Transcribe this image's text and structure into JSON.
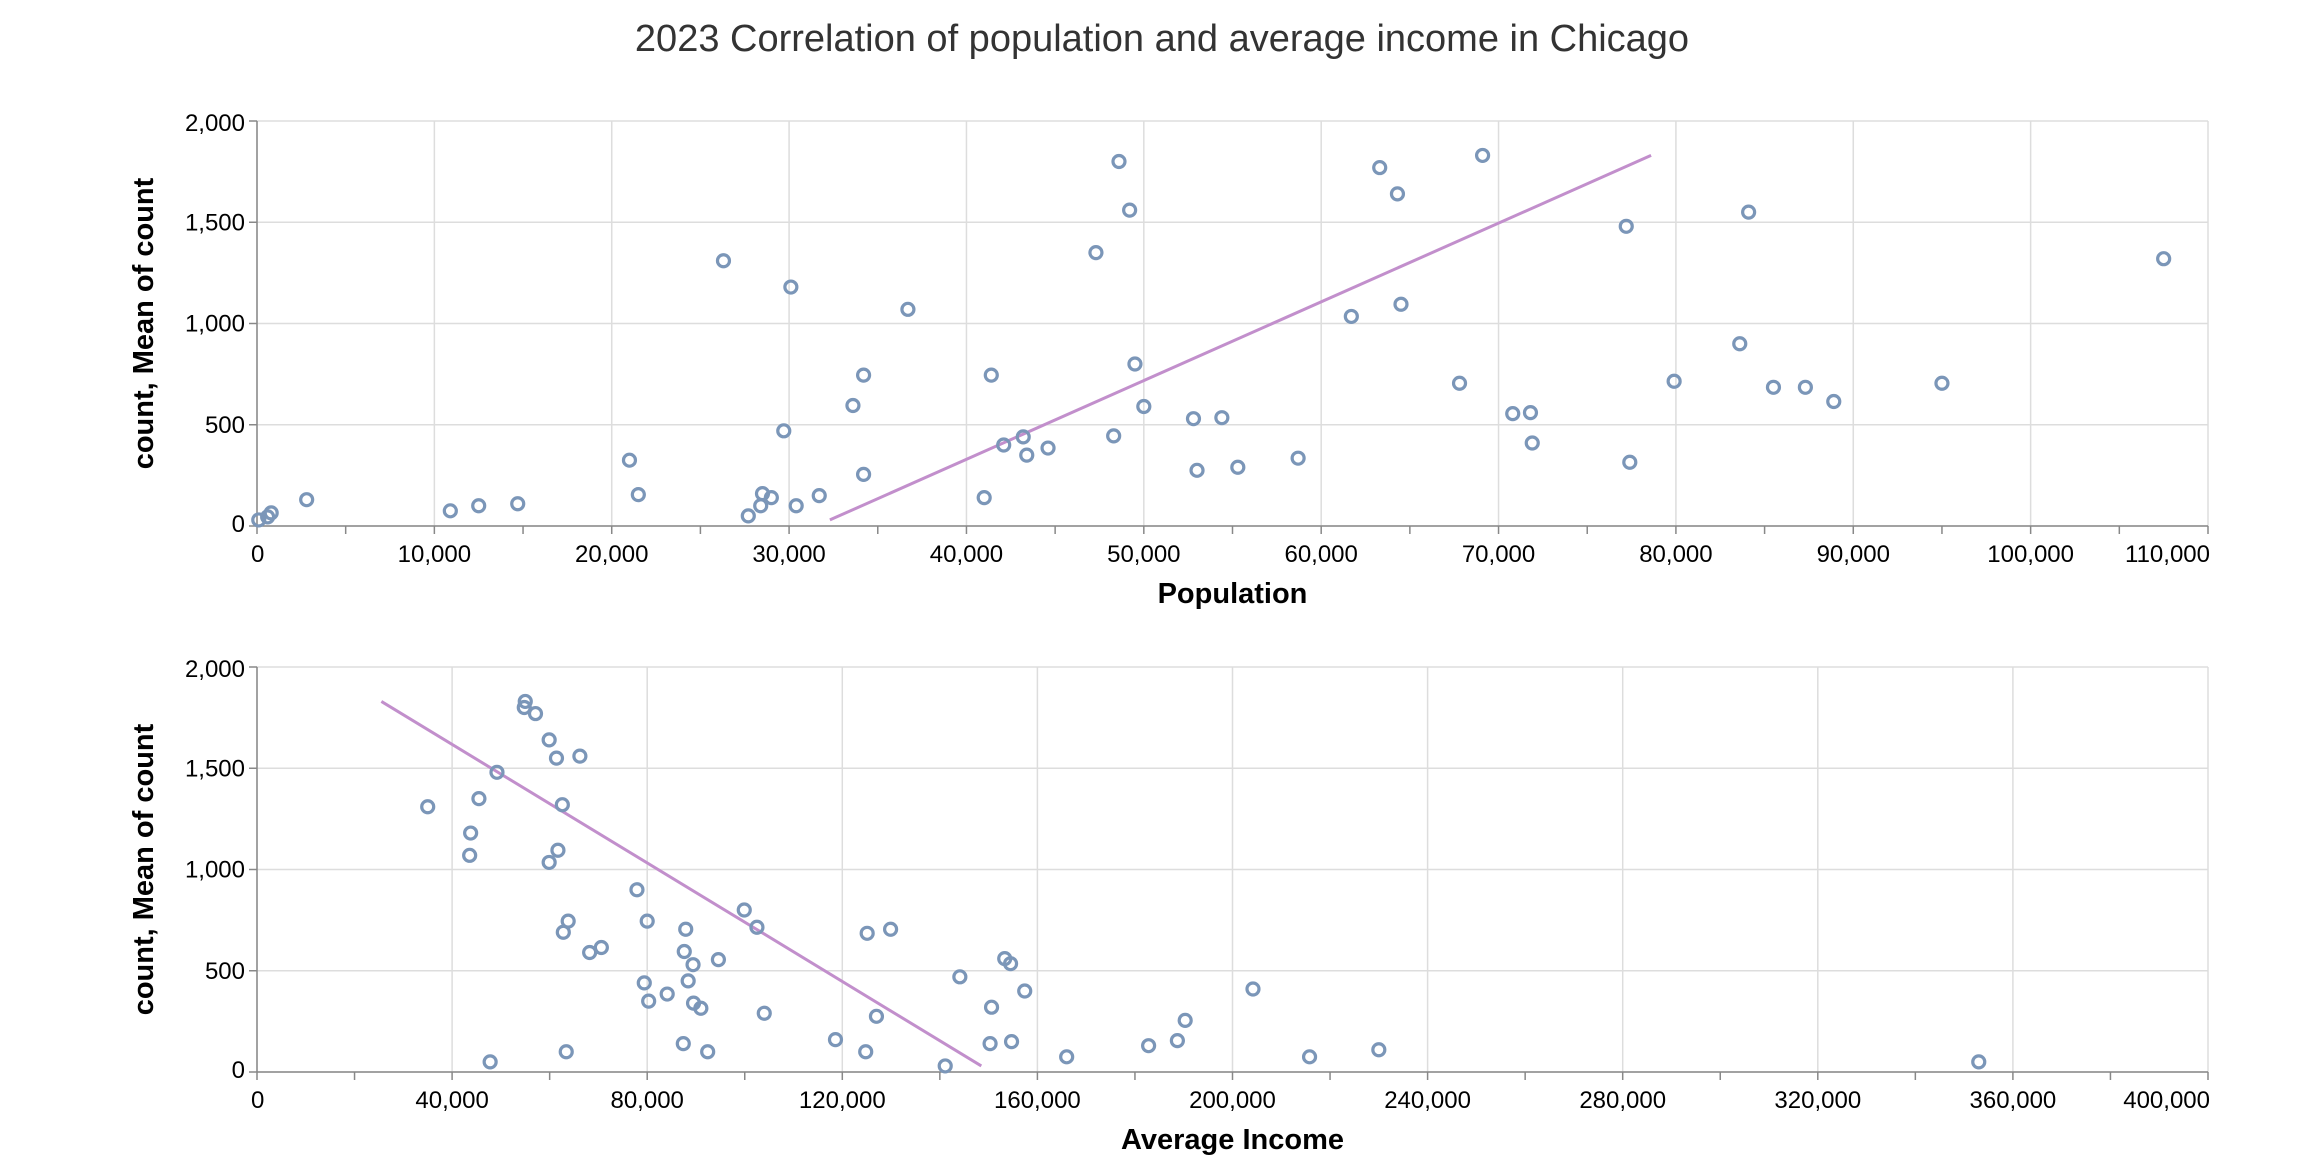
{
  "title": "2023 Correlation of population and average income in Chicago",
  "colors": {
    "points": "#7b96b8",
    "trend": "#c28fcc",
    "grid": "#dddddd",
    "axis": "#888888"
  },
  "chart_data": [
    {
      "type": "scatter",
      "xlabel": "Population",
      "ylabel": "count, Mean of count",
      "xlim": [
        0,
        110000
      ],
      "ylim": [
        0,
        2000
      ],
      "x_ticks": [
        0,
        10000,
        20000,
        30000,
        40000,
        50000,
        60000,
        70000,
        80000,
        90000,
        100000,
        110000
      ],
      "x_tick_labels": [
        "0",
        "10,000",
        "20,000",
        "30,000",
        "40,000",
        "50,000",
        "60,000",
        "70,000",
        "80,000",
        "90,000",
        "100,000",
        "110,000"
      ],
      "x_minor_ticks": [
        5000,
        15000,
        25000,
        35000,
        45000,
        55000,
        65000,
        75000,
        85000,
        95000,
        105000
      ],
      "y_ticks": [
        0,
        500,
        1000,
        1500,
        2000
      ],
      "y_tick_labels": [
        "0",
        "500",
        "1,000",
        "1,500",
        "2,000"
      ],
      "grid": true,
      "points": [
        [
          100,
          30
        ],
        [
          600,
          45
        ],
        [
          800,
          65
        ],
        [
          2800,
          130
        ],
        [
          10900,
          75
        ],
        [
          12500,
          100
        ],
        [
          14700,
          110
        ],
        [
          21000,
          325
        ],
        [
          21500,
          155
        ],
        [
          26300,
          1310
        ],
        [
          27700,
          50
        ],
        [
          28400,
          100
        ],
        [
          28500,
          160
        ],
        [
          29000,
          140
        ],
        [
          29700,
          470
        ],
        [
          30100,
          1180
        ],
        [
          30400,
          100
        ],
        [
          31700,
          150
        ],
        [
          33600,
          595
        ],
        [
          34200,
          745
        ],
        [
          34200,
          255
        ],
        [
          36700,
          1070
        ],
        [
          41000,
          140
        ],
        [
          41400,
          745
        ],
        [
          42100,
          400
        ],
        [
          43200,
          440
        ],
        [
          43400,
          350
        ],
        [
          44600,
          385
        ],
        [
          47300,
          1350
        ],
        [
          48300,
          445
        ],
        [
          48600,
          1800
        ],
        [
          49200,
          1560
        ],
        [
          49500,
          800
        ],
        [
          50000,
          590
        ],
        [
          52800,
          530
        ],
        [
          53000,
          275
        ],
        [
          54400,
          535
        ],
        [
          55300,
          290
        ],
        [
          58700,
          335
        ],
        [
          61700,
          1035
        ],
        [
          63300,
          1770
        ],
        [
          64300,
          1640
        ],
        [
          64500,
          1095
        ],
        [
          67800,
          705
        ],
        [
          69100,
          1830
        ],
        [
          70800,
          555
        ],
        [
          71800,
          560
        ],
        [
          71900,
          410
        ],
        [
          77200,
          1480
        ],
        [
          77400,
          315
        ],
        [
          79900,
          715
        ],
        [
          83600,
          900
        ],
        [
          84100,
          1550
        ],
        [
          85500,
          685
        ],
        [
          87300,
          685
        ],
        [
          88900,
          615
        ],
        [
          95000,
          705
        ],
        [
          107500,
          1320
        ]
      ],
      "trendline": [
        [
          32300,
          30
        ],
        [
          78600,
          1830
        ]
      ]
    },
    {
      "type": "scatter",
      "xlabel": "Average Income",
      "ylabel": "count, Mean of count",
      "xlim": [
        0,
        400000
      ],
      "ylim": [
        0,
        2000
      ],
      "x_ticks": [
        0,
        40000,
        80000,
        120000,
        160000,
        200000,
        240000,
        280000,
        320000,
        360000,
        400000
      ],
      "x_tick_labels": [
        "0",
        "40,000",
        "80,000",
        "120,000",
        "160,000",
        "200,000",
        "240,000",
        "280,000",
        "320,000",
        "360,000",
        "400,000"
      ],
      "x_minor_ticks": [
        20000,
        60000,
        100000,
        140000,
        180000,
        220000,
        260000,
        300000,
        340000,
        380000
      ],
      "y_ticks": [
        0,
        500,
        1000,
        1500,
        2000
      ],
      "y_tick_labels": [
        "0",
        "500",
        "1,000",
        "1,500",
        "2,000"
      ],
      "grid": true,
      "points": [
        [
          35000,
          1310
        ],
        [
          43600,
          1070
        ],
        [
          43800,
          1180
        ],
        [
          45500,
          1350
        ],
        [
          47800,
          50
        ],
        [
          49200,
          1480
        ],
        [
          54800,
          1800
        ],
        [
          55000,
          1830
        ],
        [
          57100,
          1770
        ],
        [
          59900,
          1640
        ],
        [
          59900,
          1035
        ],
        [
          61400,
          1550
        ],
        [
          61700,
          1095
        ],
        [
          62600,
          1320
        ],
        [
          62800,
          690
        ],
        [
          63400,
          100
        ],
        [
          63800,
          745
        ],
        [
          66200,
          1560
        ],
        [
          68200,
          590
        ],
        [
          70600,
          615
        ],
        [
          77900,
          900
        ],
        [
          79400,
          440
        ],
        [
          80000,
          745
        ],
        [
          80300,
          350
        ],
        [
          84100,
          385
        ],
        [
          87400,
          140
        ],
        [
          87600,
          595
        ],
        [
          87900,
          705
        ],
        [
          88400,
          450
        ],
        [
          89400,
          530
        ],
        [
          89500,
          340
        ],
        [
          91000,
          315
        ],
        [
          92400,
          100
        ],
        [
          94600,
          555
        ],
        [
          99900,
          800
        ],
        [
          102500,
          715
        ],
        [
          104000,
          290
        ],
        [
          118600,
          160
        ],
        [
          124800,
          100
        ],
        [
          125100,
          685
        ],
        [
          127000,
          275
        ],
        [
          129900,
          705
        ],
        [
          141100,
          30
        ],
        [
          144100,
          470
        ],
        [
          150300,
          140
        ],
        [
          150600,
          320
        ],
        [
          153300,
          560
        ],
        [
          154500,
          535
        ],
        [
          154700,
          150
        ],
        [
          157400,
          400
        ],
        [
          166000,
          75
        ],
        [
          182800,
          130
        ],
        [
          188700,
          155
        ],
        [
          190300,
          255
        ],
        [
          204200,
          410
        ],
        [
          215800,
          75
        ],
        [
          230000,
          110
        ],
        [
          353000,
          50
        ]
      ],
      "trendline": [
        [
          25500,
          1830
        ],
        [
          148500,
          30
        ]
      ]
    }
  ]
}
